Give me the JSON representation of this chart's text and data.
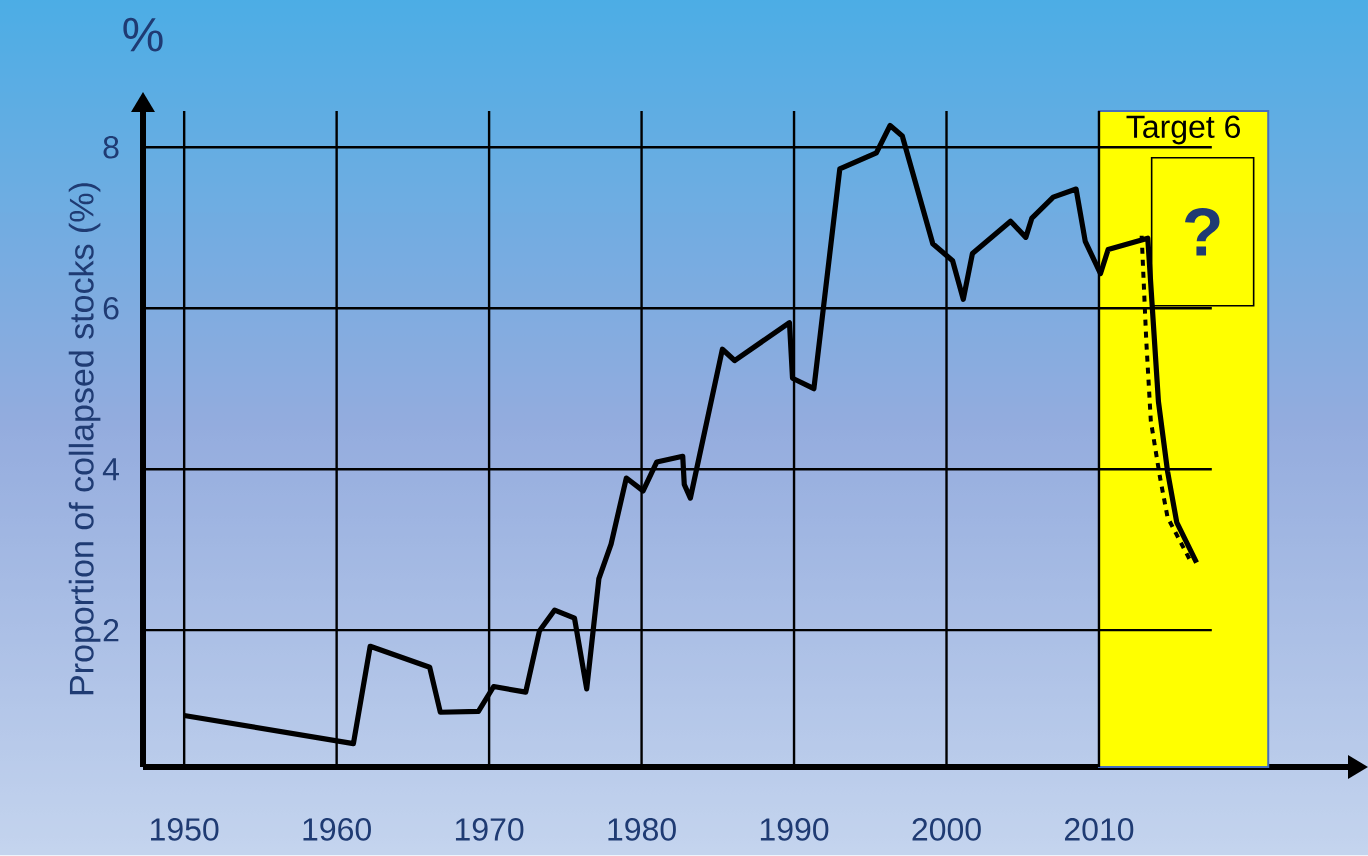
{
  "chart_data": {
    "type": "line",
    "ylabel": "Proportion of collapsed stocks (%)",
    "annotations": [
      "%",
      "?"
    ],
    "x": [
      1950,
      1961.1,
      1962.2,
      1966.1,
      1966.8,
      1969.3,
      1970.3,
      1972.4,
      1973.3,
      1974.3,
      1975.6,
      1976.4,
      1977.2,
      1978.0,
      1979.0,
      1980.1,
      1981.0,
      1982.7,
      1982.8,
      1983.2,
      1985.3,
      1986.1,
      1989.7,
      1989.9,
      1991.3,
      1993.0,
      1995.4,
      1996.3,
      1997.1,
      1999.1,
      2000.4,
      2001.1,
      2001.7,
      2004.2,
      2005.2,
      2005.6,
      2007.0,
      2008.5,
      2009.1,
      2010.1,
      2010.6,
      2013.2,
      2013.9,
      2014.5,
      2015.1,
      2016.4
    ],
    "series": [
      {
        "color": "#000000",
        "line_style": "solid",
        "values": [
          0.94,
          0.59,
          1.8,
          1.54,
          0.98,
          0.99,
          1.3,
          1.23,
          1.99,
          2.25,
          2.15,
          1.27,
          2.64,
          3.07,
          3.89,
          3.73,
          4.09,
          4.16,
          3.81,
          3.64,
          5.49,
          5.35,
          5.82,
          5.13,
          5.0,
          7.73,
          7.93,
          8.27,
          8.14,
          6.8,
          6.59,
          6.11,
          6.68,
          7.08,
          6.88,
          7.12,
          7.38,
          7.48,
          6.83,
          6.43,
          6.73,
          6.87,
          4.84,
          3.97,
          3.34,
          2.84
        ]
      },
      {
        "color": "#000000",
        "line_style": "dashed",
        "x": [
          2012.8,
          2013.1,
          2013.4,
          2014.0,
          2014.5,
          2016.0
        ],
        "values": [
          6.9,
          5.6,
          4.6,
          3.9,
          3.4,
          2.86
        ]
      }
    ],
    "xlim": [
      1947.3,
      2026.4
    ],
    "ylim": [
      0.3,
      8.45
    ],
    "xticks": [
      1950,
      1960,
      1970,
      1980,
      1990,
      2000,
      2010
    ],
    "yticks": [
      2,
      4,
      6,
      8
    ],
    "grid": true,
    "bands": [
      {
        "axis": "x",
        "from": 2010,
        "to": 2021.1,
        "label": "Target 6",
        "color": "#ffff00"
      }
    ]
  }
}
